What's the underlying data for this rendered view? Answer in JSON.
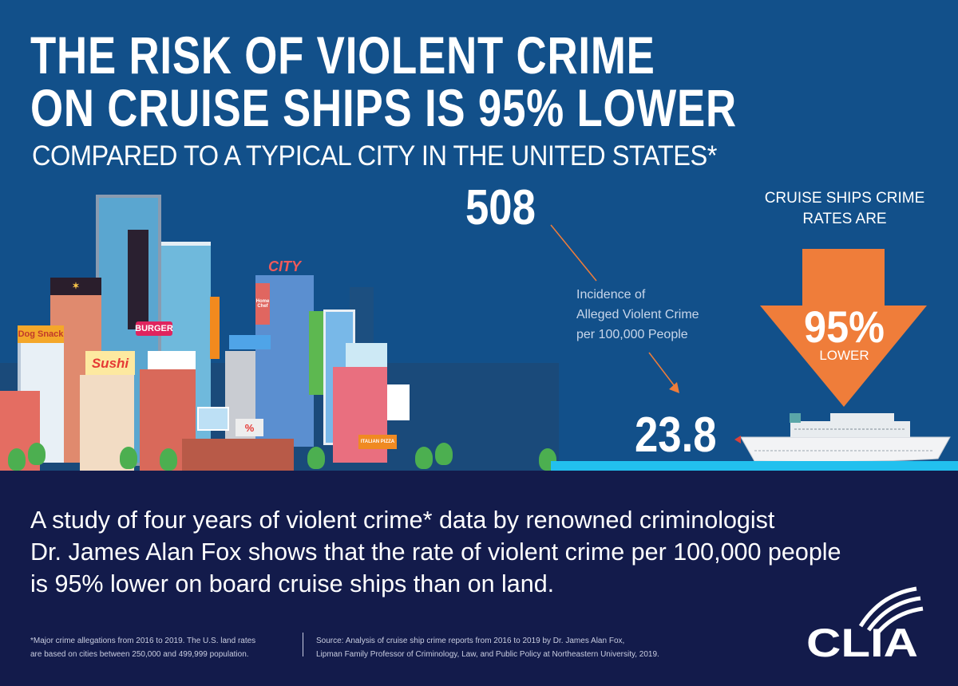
{
  "headline": {
    "line1": "THE RISK OF VIOLENT CRIME",
    "line2": "ON CRUISE SHIPS IS 95% LOWER",
    "subtitle": "COMPARED TO A TYPICAL CITY IN THE UNITED STATES*"
  },
  "comparison": {
    "city_value": "508",
    "cruise_value": "23.8",
    "metric_label_line1": "Incidence of",
    "metric_label_line2": "Alleged Violent Crime",
    "metric_label_line3": "per 100,000 People"
  },
  "callout": {
    "heading_line1": "CRUISE SHIPS CRIME",
    "heading_line2": "RATES ARE",
    "percent": "95%",
    "label": "LOWER"
  },
  "illustration": {
    "signs": [
      "Dog Snack",
      "BURGER",
      "Sushi",
      "CITY",
      "Home Chef",
      "ITALIAN PIZZA",
      "%"
    ]
  },
  "body": {
    "line1": "A study of four years of violent crime* data by renowned criminologist",
    "line2": "Dr. James Alan Fox shows that the rate of violent crime per 100,000 people",
    "line3": "is 95% lower on board cruise ships than on land."
  },
  "footnotes": {
    "note_line1": "*Major crime allegations from 2016 to 2019. The U.S. land rates",
    "note_line2": "are based on cities between 250,000 and 499,999 population.",
    "source_line1": "Source: Analysis of cruise ship crime reports from 2016 to 2019 by Dr. James Alan Fox,",
    "source_line2": "Lipman Family Professor of Criminology, Law, and Public Policy at Northeastern University, 2019."
  },
  "logo": {
    "text": "CLIA"
  },
  "colors": {
    "top_bg": "#12508a",
    "bottom_bg": "#131b4b",
    "accent": "#ef7d3a",
    "water": "#22c0ee"
  }
}
